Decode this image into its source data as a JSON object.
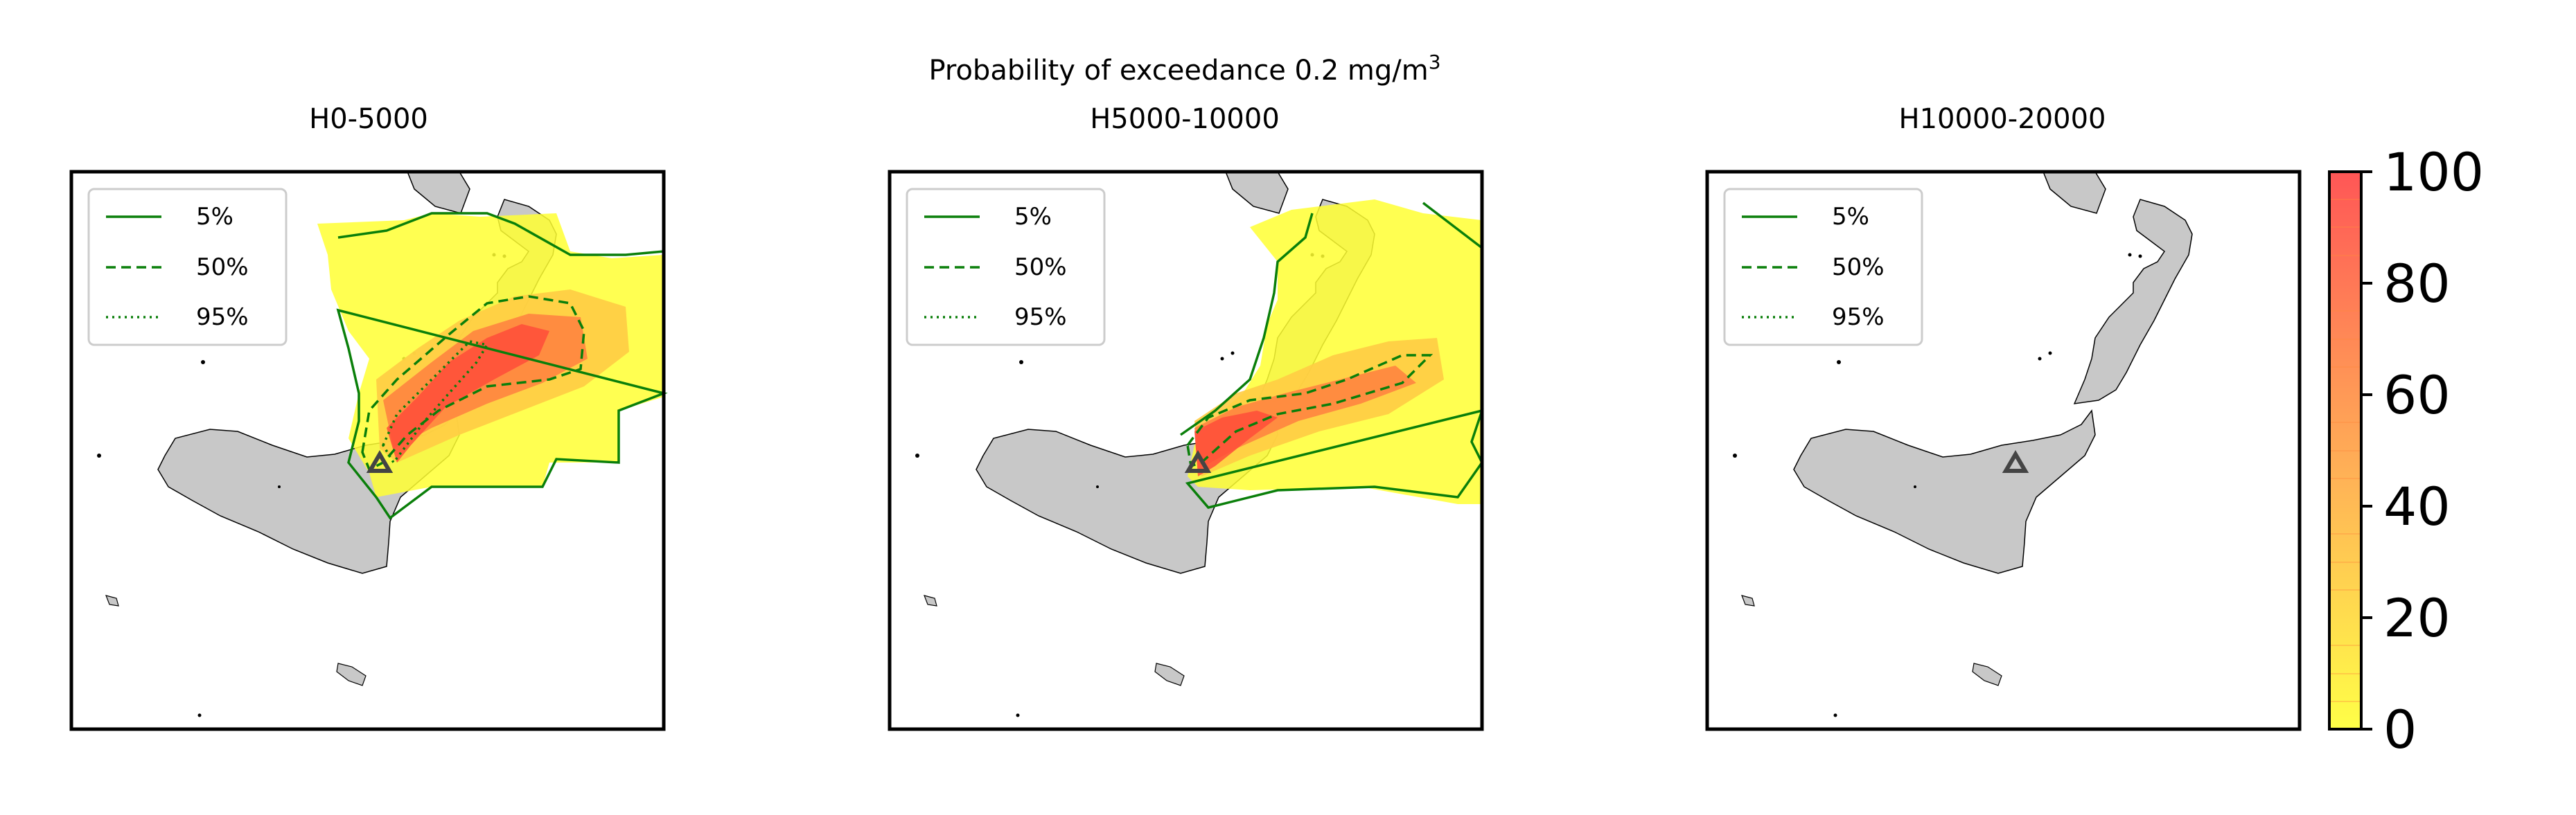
{
  "figure": {
    "suptitle": "Probability of exceedance 0.2 mg/m",
    "suptitle_superscript": "3"
  },
  "legend": {
    "items": [
      {
        "label": "5%",
        "style": "solid"
      },
      {
        "label": "50%",
        "style": "dashed"
      },
      {
        "label": "95%",
        "style": "dotted"
      }
    ]
  },
  "colorbar": {
    "ticks": [
      "0",
      "20",
      "40",
      "60",
      "80",
      "100"
    ],
    "range": [
      0,
      100
    ],
    "colors": [
      "#ffff33",
      "#ff3333"
    ]
  },
  "colors": {
    "land": "#c8c8c8",
    "contour": "#0a7f0a",
    "vent_marker": "#444444"
  },
  "panels": [
    {
      "title": "H0-5000",
      "has_plume": true
    },
    {
      "title": "H5000-10000",
      "has_plume": true
    },
    {
      "title": "H10000-20000",
      "has_plume": false
    }
  ]
}
